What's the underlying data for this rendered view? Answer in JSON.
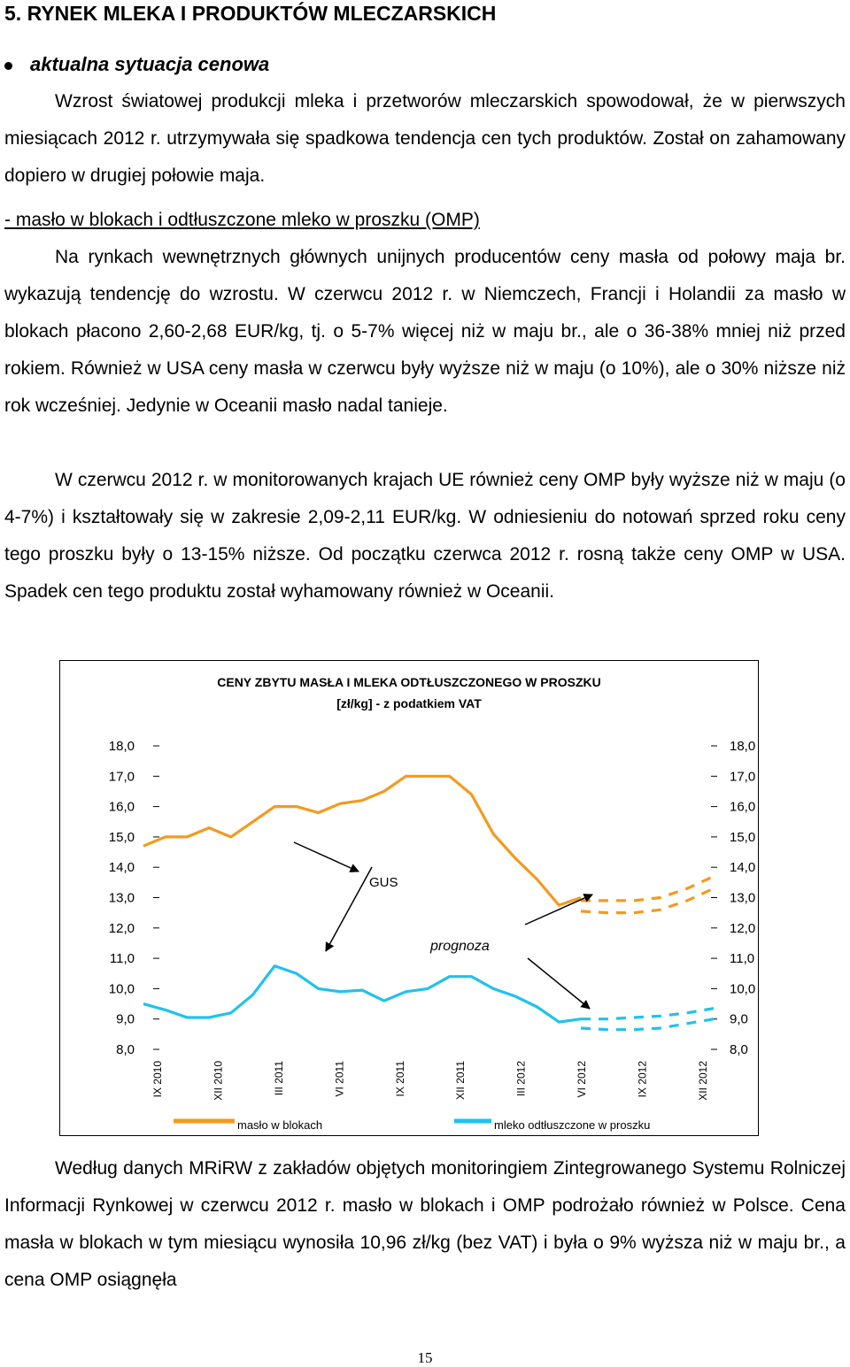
{
  "heading": "5. RYNEK MLEKA I PRODUKTÓW MLECZARSKICH",
  "bullet": "aktualna sytuacja cenowa",
  "p1": "Wzrost światowej produkcji mleka i przetworów mleczarskich spowodował, że w pierwszych miesiącach 2012 r. utrzymywała się spadkowa tendencja cen tych produktów. Został on zahamowany dopiero w drugiej połowie maja.",
  "subheading": "- masło w blokach i odtłuszczone mleko w proszku (OMP)",
  "p2": "Na rynkach wewnętrznych głównych unijnych producentów ceny masła od połowy maja br. wykazują tendencję do wzrostu. W czerwcu 2012 r. w Niemczech, Francji i Holandii za masło w blokach płacono 2,60-2,68 EUR/kg, tj. o 5-7% więcej niż w maju br., ale o 36-38% mniej niż przed rokiem. Również w USA ceny masła w czerwcu były wyższe niż w maju (o 10%), ale o 30% niższe niż rok wcześniej. Jedynie w Oceanii masło nadal tanieje.",
  "p3": "W czerwcu 2012 r. w monitorowanych krajach UE również ceny OMP były wyższe niż w maju (o 4-7%) i kształtowały się w zakresie 2,09-2,11 EUR/kg. W odniesieniu do notowań sprzed roku ceny tego proszku były o 13-15% niższe. Od początku czerwca 2012 r. rosną także ceny OMP w USA. Spadek cen tego produktu został wyhamowany również w Oceanii.",
  "p4": "Według danych MRiRW z zakładów objętych monitoringiem Zintegrowanego Systemu Rolniczej Informacji Rynkowej w czerwcu 2012 r. masło w blokach i OMP podrożało również w Polsce. Cena masła w blokach w tym miesiącu wynosiła 10,96 zł/kg (bez VAT) i była o 9% wyższa niż w maju br., a cena OMP osiągnęła",
  "page_number": "15",
  "chart_data": {
    "type": "line",
    "title_line1": "CENY ZBYTU MASŁA I MLEKA ODTŁUSZCZONEGO W PROSZKU",
    "title_line2": "[zł/kg] - z podatkiem VAT",
    "ylim": [
      8,
      18
    ],
    "y_ticks": [
      "18,0",
      "17,0",
      "16,0",
      "15,0",
      "14,0",
      "13,0",
      "12,0",
      "11,0",
      "10,0",
      "9,0",
      "8,0"
    ],
    "x_tick_labels": [
      "IX 2010",
      "XII 2010",
      "III 2011",
      "VI 2011",
      "IX 2011",
      "XII 2011",
      "III 2012",
      "VI 2012",
      "IX 2012",
      "XII 2012"
    ],
    "annotation_gus": "GUS",
    "annotation_prognoza": "prognoza",
    "colors": {
      "butter": "#f39a1f",
      "omp": "#1fc2ee"
    },
    "series": [
      {
        "name": "masło w blokach",
        "color": "#f39a1f",
        "actual": [
          14.7,
          15.0,
          15.0,
          15.3,
          15.0,
          15.5,
          16.0,
          16.0,
          15.8,
          16.1,
          16.2,
          16.5,
          17.0,
          17.0,
          17.0,
          16.4,
          15.1,
          14.3,
          13.6,
          12.75,
          13.0
        ],
        "forecast_lines": [
          [
            12.9,
            12.9,
            12.9,
            13.0,
            13.3,
            13.7
          ],
          [
            12.55,
            12.5,
            12.5,
            12.6,
            12.9,
            13.3
          ]
        ]
      },
      {
        "name": "mleko odtłuszczone w proszku",
        "color": "#1fc2ee",
        "actual": [
          9.5,
          9.3,
          9.05,
          9.05,
          9.2,
          9.8,
          10.75,
          10.5,
          10.0,
          9.9,
          9.95,
          9.6,
          9.9,
          10.0,
          10.4,
          10.4,
          10.0,
          9.75,
          9.4,
          8.9,
          9.0
        ],
        "forecast_lines": [
          [
            9.0,
            9.0,
            9.05,
            9.1,
            9.2,
            9.35
          ],
          [
            8.7,
            8.65,
            8.65,
            8.7,
            8.85,
            9.0
          ]
        ]
      }
    ]
  }
}
